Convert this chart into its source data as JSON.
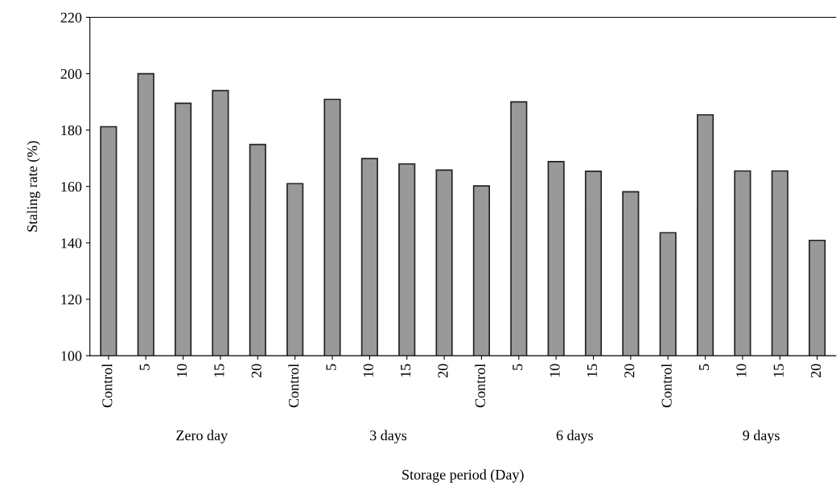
{
  "chart_data": {
    "type": "bar",
    "xlabel": "Storage period (Day)",
    "ylabel": "Staling rate (%)",
    "categories": [
      "Control",
      "5",
      "10",
      "15",
      "20",
      "Control",
      "5",
      "10",
      "15",
      "20",
      "Control",
      "5",
      "10",
      "15",
      "20",
      "Control",
      "5",
      "10",
      "15",
      "20"
    ],
    "values": [
      181.2,
      200,
      189.5,
      194,
      174.9,
      161,
      190.9,
      169.9,
      168,
      165.8,
      160.2,
      190,
      168.8,
      165.4,
      158.1,
      143.6,
      185.4,
      165.5,
      165.5,
      140.9
    ],
    "color": "#999999",
    "annotations": [
      "Zero day",
      "3 days",
      "6 days",
      "9 days"
    ],
    "ylim": [
      100,
      220
    ],
    "yticks": [
      100,
      120,
      140,
      160,
      180,
      200,
      220
    ],
    "grid": false,
    "legend": false
  }
}
